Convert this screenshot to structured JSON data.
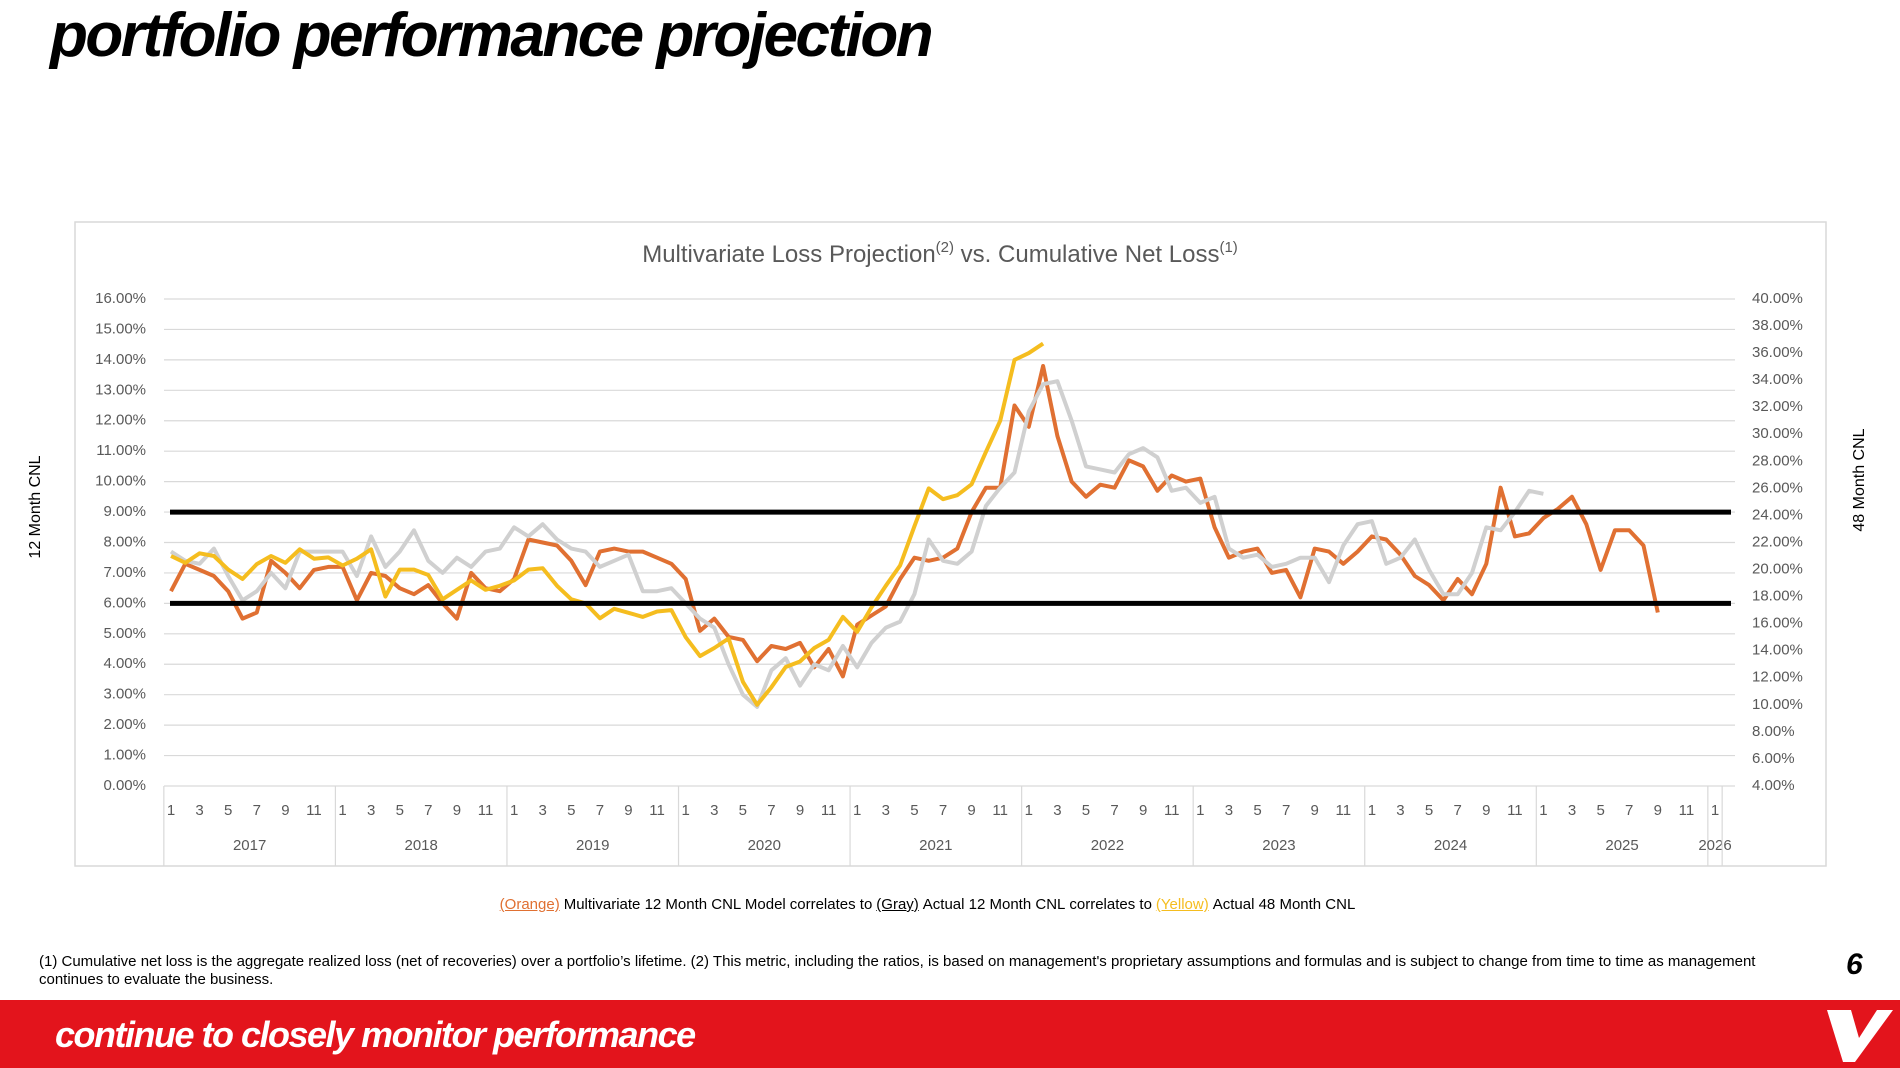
{
  "header": {
    "title": "portfolio performance projection"
  },
  "chart_data": {
    "type": "line",
    "title": {
      "main": "Multivariate Loss Projection",
      "sup1": "(2)",
      "mid": " vs. Cumulative Net Loss",
      "sup2": "(1)"
    },
    "ylabel": "12 Month CNL",
    "y2label": "48 Month CNL",
    "categories": [
      "1",
      null,
      "3",
      null,
      "5",
      null,
      "7",
      null,
      "9",
      null,
      "11",
      null,
      "1",
      null,
      "3",
      null,
      "5",
      null,
      "7",
      null,
      "9",
      null,
      "11",
      null,
      "1",
      null,
      "3",
      null,
      "5",
      null,
      "7",
      null,
      "9",
      null,
      "11",
      null,
      "1",
      null,
      "3",
      null,
      "5",
      null,
      "7",
      null,
      "9",
      null,
      "11",
      null,
      "1",
      null,
      "3",
      null,
      "5",
      null,
      "7",
      null,
      "9",
      null,
      "11",
      null,
      "1",
      null,
      "3",
      null,
      "5",
      null,
      "7",
      null,
      "9",
      null,
      "11",
      null,
      "1",
      null,
      "3",
      null,
      "5",
      null,
      "7",
      null,
      "9",
      null,
      "11",
      null,
      "1",
      null,
      "3",
      null,
      "5",
      null,
      "7",
      null,
      "9",
      null,
      "11",
      null,
      "1",
      null,
      "3",
      null,
      "5",
      null,
      "7",
      null,
      "9",
      null,
      "11",
      null,
      "1"
    ],
    "years": [
      "2017",
      "2018",
      "2019",
      "2020",
      "2021",
      "2022",
      "2023",
      "2024",
      "2025",
      "2026"
    ],
    "series": [
      {
        "name": "Multivariate 12 Month CNL Model",
        "color": "#e07032",
        "axis": "y",
        "values": [
          6.4,
          7.3,
          7.1,
          6.9,
          6.4,
          5.5,
          5.7,
          7.4,
          7.0,
          6.5,
          7.1,
          7.2,
          7.2,
          6.1,
          7.0,
          6.9,
          6.5,
          6.3,
          6.6,
          6.0,
          5.5,
          7.0,
          6.5,
          6.4,
          6.8,
          8.1,
          8.0,
          7.9,
          7.4,
          6.6,
          7.7,
          7.8,
          7.7,
          7.7,
          7.5,
          7.3,
          6.8,
          5.1,
          5.5,
          4.9,
          4.8,
          4.1,
          4.6,
          4.5,
          4.7,
          3.9,
          4.5,
          3.6,
          5.3,
          5.6,
          5.9,
          6.8,
          7.5,
          7.4,
          7.5,
          7.8,
          9.0,
          9.8,
          9.8,
          12.5,
          11.8,
          13.8,
          11.5,
          10.0,
          9.5,
          9.9,
          9.8,
          10.7,
          10.5,
          9.7,
          10.2,
          10.0,
          10.1,
          8.5,
          7.5,
          7.7,
          7.8,
          7.0,
          7.1,
          6.2,
          7.8,
          7.7,
          7.3,
          7.7,
          8.2,
          8.1,
          7.6,
          6.9,
          6.6,
          6.1,
          6.8,
          6.3,
          7.3,
          9.8,
          8.2,
          8.3,
          8.8,
          9.1,
          9.5,
          8.6,
          7.1,
          8.4,
          8.4,
          7.9,
          5.7,
          null,
          null,
          null,
          null
        ]
      },
      {
        "name": "Actual 12 Month CNL",
        "color": "#d0d0d0",
        "axis": "y",
        "values": [
          7.7,
          7.4,
          7.3,
          7.8,
          6.9,
          6.1,
          6.4,
          7.0,
          6.5,
          7.7,
          7.7,
          7.7,
          7.7,
          6.9,
          8.2,
          7.2,
          7.7,
          8.4,
          7.4,
          7.0,
          7.5,
          7.2,
          7.7,
          7.8,
          8.5,
          8.2,
          8.6,
          8.1,
          7.8,
          7.7,
          7.2,
          7.4,
          7.6,
          6.4,
          6.4,
          6.5,
          6.0,
          5.5,
          5.2,
          4.0,
          3.0,
          2.6,
          3.8,
          4.2,
          3.3,
          4.0,
          3.8,
          4.6,
          3.9,
          4.7,
          5.2,
          5.4,
          6.3,
          8.1,
          7.4,
          7.3,
          7.7,
          9.2,
          9.8,
          10.3,
          12.3,
          13.2,
          13.3,
          12.0,
          10.5,
          10.4,
          10.3,
          10.9,
          11.1,
          10.8,
          9.7,
          9.8,
          9.3,
          9.5,
          7.8,
          7.5,
          7.6,
          7.2,
          7.3,
          7.5,
          7.5,
          6.7,
          7.9,
          8.6,
          8.7,
          7.3,
          7.5,
          8.1,
          7.1,
          6.3,
          6.3,
          7.0,
          8.5,
          8.4,
          9.0,
          9.7,
          9.6,
          null,
          null,
          null,
          null,
          null,
          null,
          null,
          null,
          null,
          null,
          null,
          null
        ]
      },
      {
        "name": "Actual 48 Month CNL",
        "color": "#f5bd1f",
        "axis": "y2",
        "values": [
          21.0,
          20.5,
          21.2,
          21.0,
          20.0,
          19.3,
          20.4,
          21.0,
          20.5,
          21.5,
          20.8,
          20.9,
          20.3,
          20.8,
          21.5,
          18.0,
          20.0,
          20.0,
          19.6,
          17.8,
          18.5,
          19.2,
          18.5,
          18.8,
          19.2,
          20.0,
          20.1,
          18.8,
          17.8,
          17.5,
          16.4,
          17.1,
          16.8,
          16.5,
          16.9,
          17.0,
          15.0,
          13.6,
          14.2,
          14.9,
          11.7,
          10.0,
          11.3,
          12.8,
          13.2,
          14.2,
          14.8,
          16.5,
          15.4,
          17.2,
          18.8,
          20.3,
          23.2,
          26.0,
          25.2,
          25.5,
          26.3,
          28.7,
          31.0,
          35.5,
          36.0,
          36.7,
          null,
          null,
          null,
          null,
          null,
          null,
          null,
          null,
          null,
          null,
          null,
          null,
          null,
          null,
          null,
          null,
          null,
          null,
          null,
          null,
          null,
          null,
          null,
          null,
          null,
          null,
          null,
          null,
          null,
          null,
          null,
          null,
          null,
          null,
          null,
          null,
          null,
          null,
          null,
          null,
          null,
          null,
          null,
          null,
          null,
          null,
          null
        ]
      }
    ],
    "hlines": [
      9,
      6
    ],
    "ylim": [
      0,
      16
    ],
    "yticks": [
      {
        "value": 0,
        "label": "0.00%"
      },
      {
        "value": 1,
        "label": "1.00%"
      },
      {
        "value": 2,
        "label": "2.00%"
      },
      {
        "value": 3,
        "label": "3.00%"
      },
      {
        "value": 4,
        "label": "4.00%"
      },
      {
        "value": 5,
        "label": "5.00%"
      },
      {
        "value": 6,
        "label": "6.00%"
      },
      {
        "value": 7,
        "label": "7.00%"
      },
      {
        "value": 8,
        "label": "8.00%"
      },
      {
        "value": 9,
        "label": "9.00%"
      },
      {
        "value": 10,
        "label": "10.00%"
      },
      {
        "value": 11,
        "label": "11.00%"
      },
      {
        "value": 12,
        "label": "12.00%"
      },
      {
        "value": 13,
        "label": "13.00%"
      },
      {
        "value": 14,
        "label": "14.00%"
      },
      {
        "value": 15,
        "label": "15.00%"
      },
      {
        "value": 16,
        "label": "16.00%"
      }
    ],
    "y2lim": [
      4,
      40
    ],
    "y2ticks": [
      {
        "value": 4,
        "label": "4.00%"
      },
      {
        "value": 6,
        "label": "6.00%"
      },
      {
        "value": 8,
        "label": "8.00%"
      },
      {
        "value": 10,
        "label": "10.00%"
      },
      {
        "value": 12,
        "label": "12.00%"
      },
      {
        "value": 14,
        "label": "14.00%"
      },
      {
        "value": 16,
        "label": "16.00%"
      },
      {
        "value": 18,
        "label": "18.00%"
      },
      {
        "value": 20,
        "label": "20.00%"
      },
      {
        "value": 22,
        "label": "22.00%"
      },
      {
        "value": 24,
        "label": "24.00%"
      },
      {
        "value": 26,
        "label": "26.00%"
      },
      {
        "value": 28,
        "label": "28.00%"
      },
      {
        "value": 30,
        "label": "30.00%"
      },
      {
        "value": 32,
        "label": "32.00%"
      },
      {
        "value": 34,
        "label": "34.00%"
      },
      {
        "value": 36,
        "label": "36.00%"
      },
      {
        "value": 38,
        "label": "38.00%"
      },
      {
        "value": 40,
        "label": "40.00%"
      }
    ],
    "grid": true,
    "caption": {
      "orange": "(Orange)",
      "gray": "(Gray)",
      "yellow": "(Yellow)",
      "connector": "correlates to"
    }
  },
  "footnote": "(1) Cumulative net loss is the aggregate realized loss (net of recoveries) over a portfolio’s lifetime. (2) This metric, including the ratios, is based on management's proprietary assumptions and formulas and is subject to change from time to time as management continues to evaluate the business.",
  "page_number": "6",
  "footer": {
    "tagline": "continue to closely monitor performance"
  }
}
